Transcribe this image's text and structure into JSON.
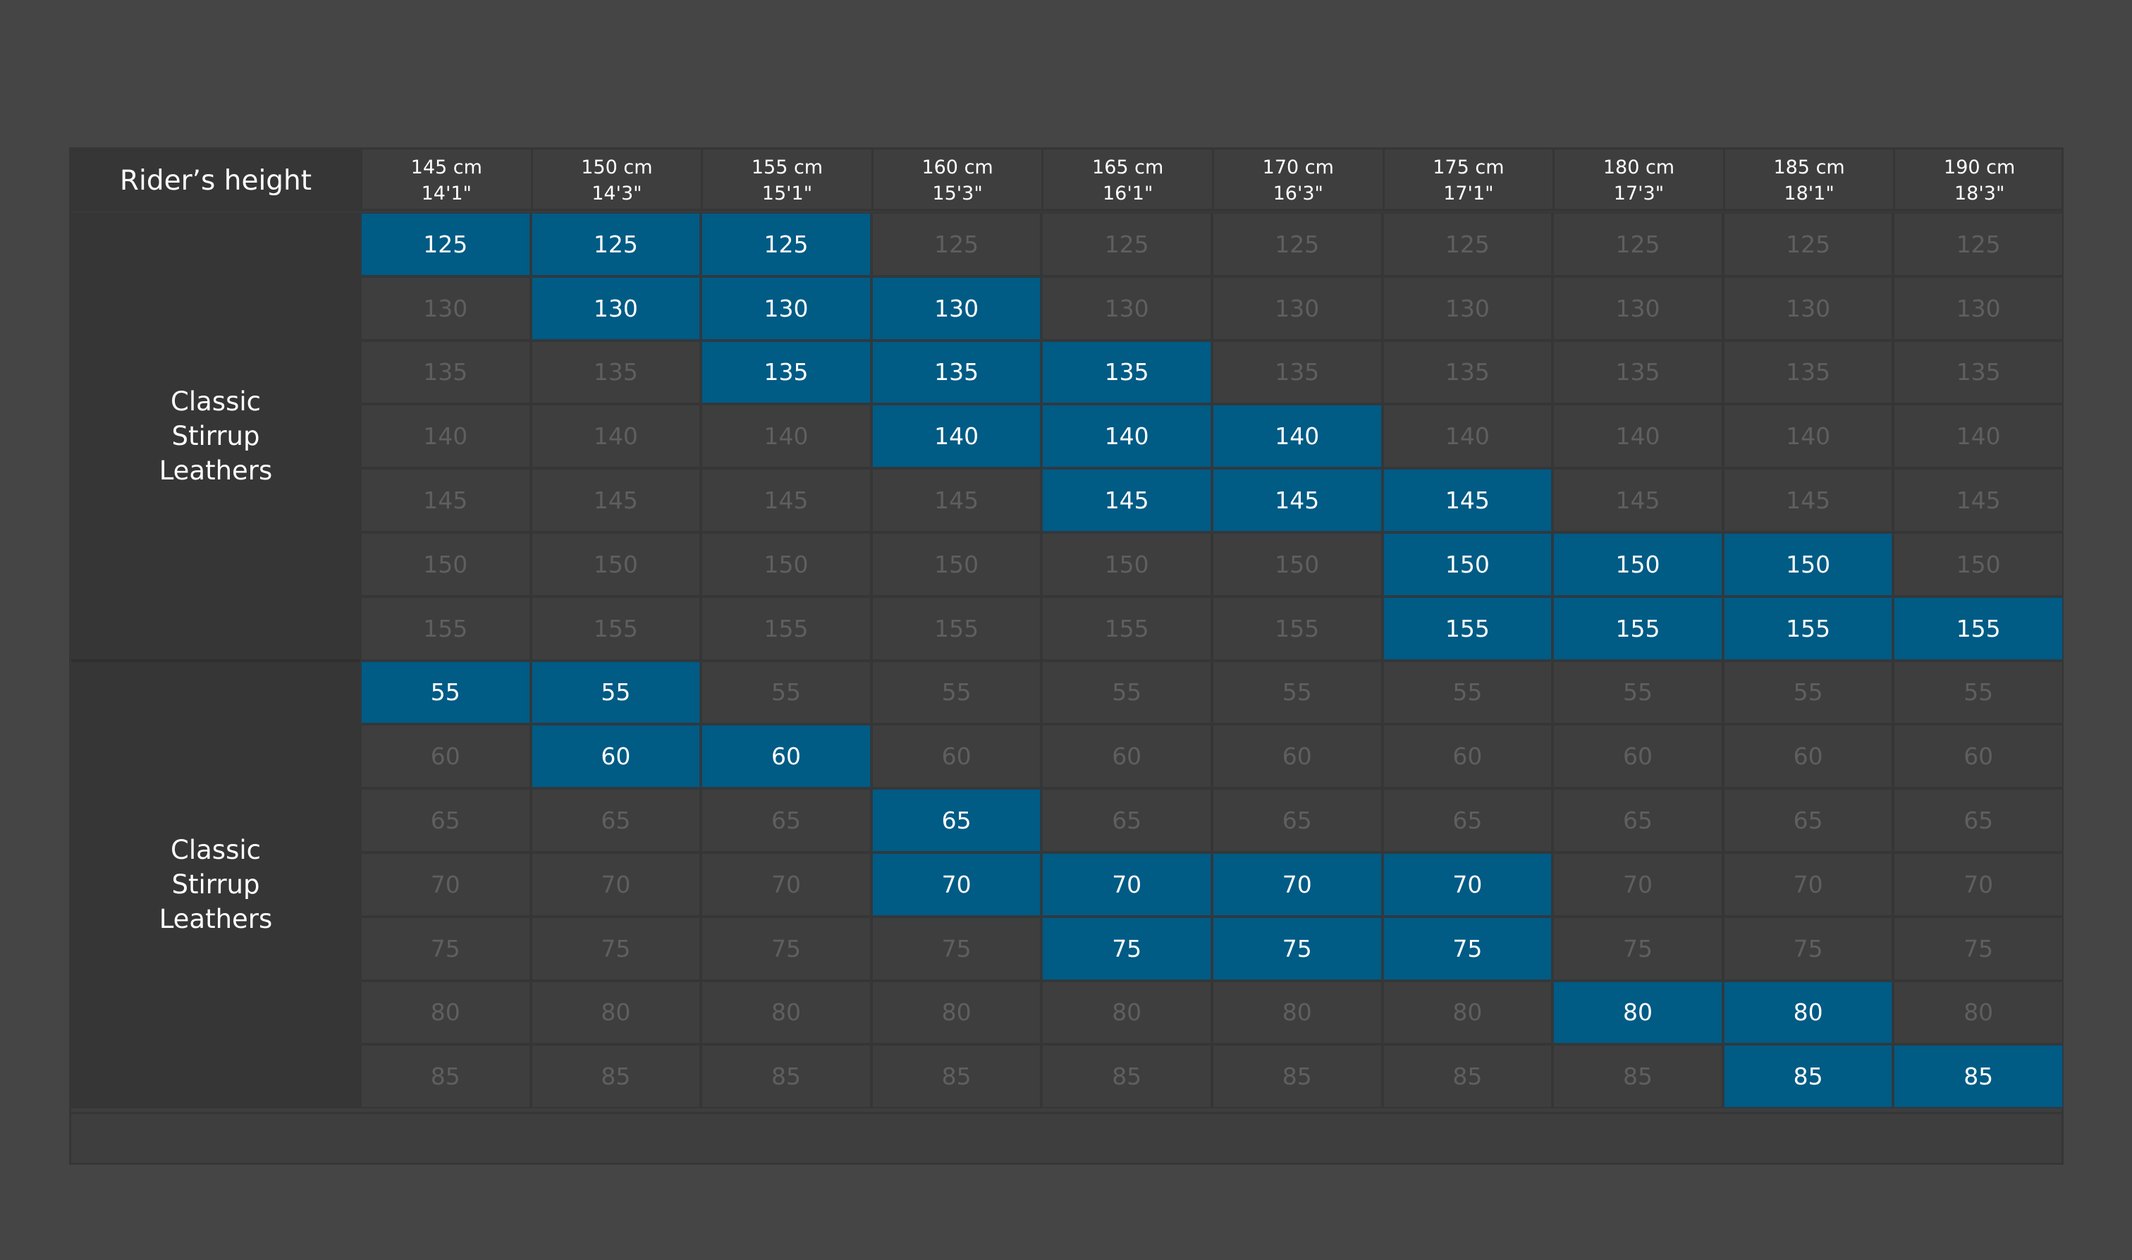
{
  "header": {
    "label": "Rider’s height",
    "columns": [
      {
        "cm": "145 cm",
        "ft": "14'1\""
      },
      {
        "cm": "150 cm",
        "ft": "14'3\""
      },
      {
        "cm": "155 cm",
        "ft": "15'1\""
      },
      {
        "cm": "160 cm",
        "ft": "15'3\""
      },
      {
        "cm": "165 cm",
        "ft": "16'1\""
      },
      {
        "cm": "170 cm",
        "ft": "16'3\""
      },
      {
        "cm": "175 cm",
        "ft": "17'1\""
      },
      {
        "cm": "180 cm",
        "ft": "17'3\""
      },
      {
        "cm": "185 cm",
        "ft": "18'1\""
      },
      {
        "cm": "190 cm",
        "ft": "18'3\""
      }
    ]
  },
  "groups": [
    {
      "label_lines": [
        "Classic",
        "Stirrup",
        "Leathers"
      ],
      "rows": [
        {
          "value": "125",
          "highlight": [
            0,
            1,
            2
          ]
        },
        {
          "value": "130",
          "highlight": [
            1,
            2,
            3
          ]
        },
        {
          "value": "135",
          "highlight": [
            2,
            3,
            4
          ]
        },
        {
          "value": "140",
          "highlight": [
            3,
            4,
            5
          ]
        },
        {
          "value": "145",
          "highlight": [
            4,
            5,
            6
          ]
        },
        {
          "value": "150",
          "highlight": [
            6,
            7,
            8
          ]
        },
        {
          "value": "155",
          "highlight": [
            6,
            7,
            8,
            9
          ]
        }
      ]
    },
    {
      "label_lines": [
        "Classic",
        "Stirrup",
        "Leathers"
      ],
      "rows": [
        {
          "value": "55",
          "highlight": [
            0,
            1
          ]
        },
        {
          "value": "60",
          "highlight": [
            1,
            2
          ]
        },
        {
          "value": "65",
          "highlight": [
            3
          ]
        },
        {
          "value": "70",
          "highlight": [
            3,
            4,
            5,
            6
          ]
        },
        {
          "value": "75",
          "highlight": [
            4,
            5,
            6
          ]
        },
        {
          "value": "80",
          "highlight": [
            7,
            8
          ]
        },
        {
          "value": "85",
          "highlight": [
            8,
            9
          ]
        }
      ]
    }
  ],
  "colors": {
    "background": "#454545",
    "highlight": "#005b85",
    "label_panel": "#363636",
    "dim_text": "#5f5f5f"
  }
}
